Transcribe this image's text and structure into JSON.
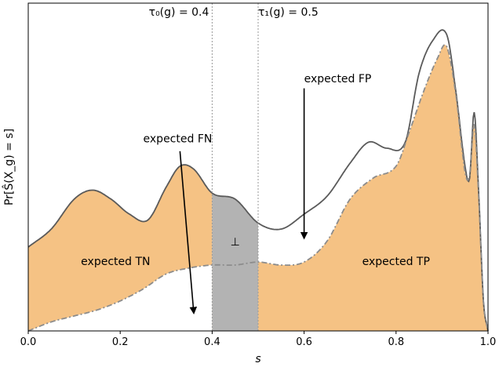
{
  "chart_data": {
    "type": "area",
    "xlabel": "s",
    "ylabel": "Pr[Ŝ(X_g) = s]",
    "xlim": [
      0,
      1
    ],
    "xticks": [
      "0.0",
      "0.2",
      "0.4",
      "0.6",
      "0.8",
      "1.0"
    ],
    "thresholds": [
      {
        "label": "τ₀(g) = 0.4",
        "x": 0.4
      },
      {
        "label": "τ₁(g) = 0.5",
        "x": 0.5
      }
    ],
    "series": [
      {
        "role": "total density",
        "style": "solid",
        "x": [
          0.0,
          0.05,
          0.1,
          0.14,
          0.18,
          0.22,
          0.26,
          0.3,
          0.33,
          0.36,
          0.4,
          0.45,
          0.5,
          0.55,
          0.6,
          0.65,
          0.7,
          0.74,
          0.78,
          0.82,
          0.85,
          0.88,
          0.91,
          0.93,
          0.95,
          0.96,
          0.97,
          0.98,
          0.99,
          1.0
        ],
        "y": [
          0.28,
          0.34,
          0.44,
          0.47,
          0.44,
          0.39,
          0.37,
          0.48,
          0.55,
          0.54,
          0.46,
          0.44,
          0.36,
          0.34,
          0.39,
          0.45,
          0.56,
          0.63,
          0.61,
          0.63,
          0.86,
          0.97,
          0.99,
          0.8,
          0.55,
          0.51,
          0.73,
          0.45,
          0.1,
          0.0
        ]
      },
      {
        "role": "positive-class density",
        "style": "dash-dot",
        "x": [
          0.0,
          0.05,
          0.1,
          0.15,
          0.2,
          0.25,
          0.3,
          0.35,
          0.4,
          0.45,
          0.5,
          0.55,
          0.6,
          0.65,
          0.7,
          0.75,
          0.8,
          0.83,
          0.86,
          0.89,
          0.91,
          0.93,
          0.95,
          0.96,
          0.97,
          0.98,
          0.99,
          1.0
        ],
        "y": [
          0.0,
          0.03,
          0.05,
          0.07,
          0.1,
          0.14,
          0.19,
          0.21,
          0.22,
          0.22,
          0.23,
          0.22,
          0.23,
          0.3,
          0.44,
          0.51,
          0.55,
          0.67,
          0.8,
          0.91,
          0.95,
          0.79,
          0.53,
          0.52,
          0.69,
          0.44,
          0.1,
          0.0
        ]
      }
    ],
    "regions": [
      {
        "label": "expected TN"
      },
      {
        "label": "expected FN"
      },
      {
        "label": "⊥"
      },
      {
        "label": "expected FP"
      },
      {
        "label": "expected TP"
      }
    ],
    "colors": {
      "accepted_fill": "#f5c284",
      "reject_fill": "#b3b3b3",
      "curve": "#5a5a5a",
      "threshold_line": "#999999"
    }
  }
}
